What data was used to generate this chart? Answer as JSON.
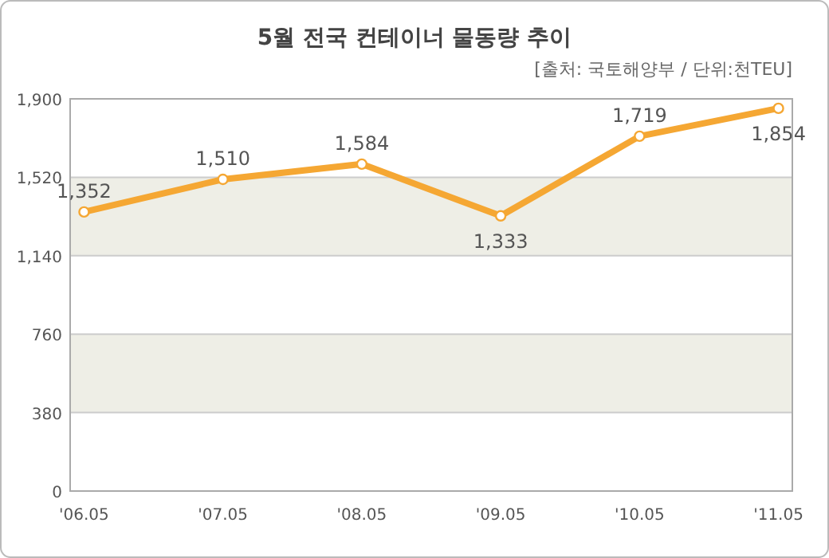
{
  "chart_data": {
    "type": "line",
    "title": "5월 전국 컨테이너 물동량 추이",
    "subtitle": "[출처: 국토해양부 / 단위:천TEU]",
    "categories": [
      "'06.05",
      "'07.05",
      "'08.05",
      "'09.05",
      "'10.05",
      "'11.05"
    ],
    "series": [
      {
        "color": "#f5a733",
        "values": [
          1352,
          1510,
          1584,
          1333,
          1719,
          1854
        ],
        "value_labels": [
          "1,352",
          "1,510",
          "1,584",
          "1,333",
          "1,719",
          "1,854"
        ]
      }
    ],
    "ylim": [
      0,
      1900
    ],
    "yticks": [
      0,
      {
        "value": 380,
        "label": "380"
      },
      {
        "value": 760,
        "label": "760"
      },
      {
        "value": 1140,
        "label": "1,140"
      },
      {
        "value": 1520,
        "label": "1,520"
      },
      {
        "value": 1900,
        "label": "1,900"
      }
    ],
    "bands": [
      {
        "axis": "y",
        "from": 380,
        "to": 760,
        "color": "#eeeee6"
      },
      {
        "axis": "y",
        "from": 1140,
        "to": 1520,
        "color": "#eeeee6"
      }
    ],
    "grid": "y",
    "marker": "circle",
    "line_style": "solid"
  }
}
